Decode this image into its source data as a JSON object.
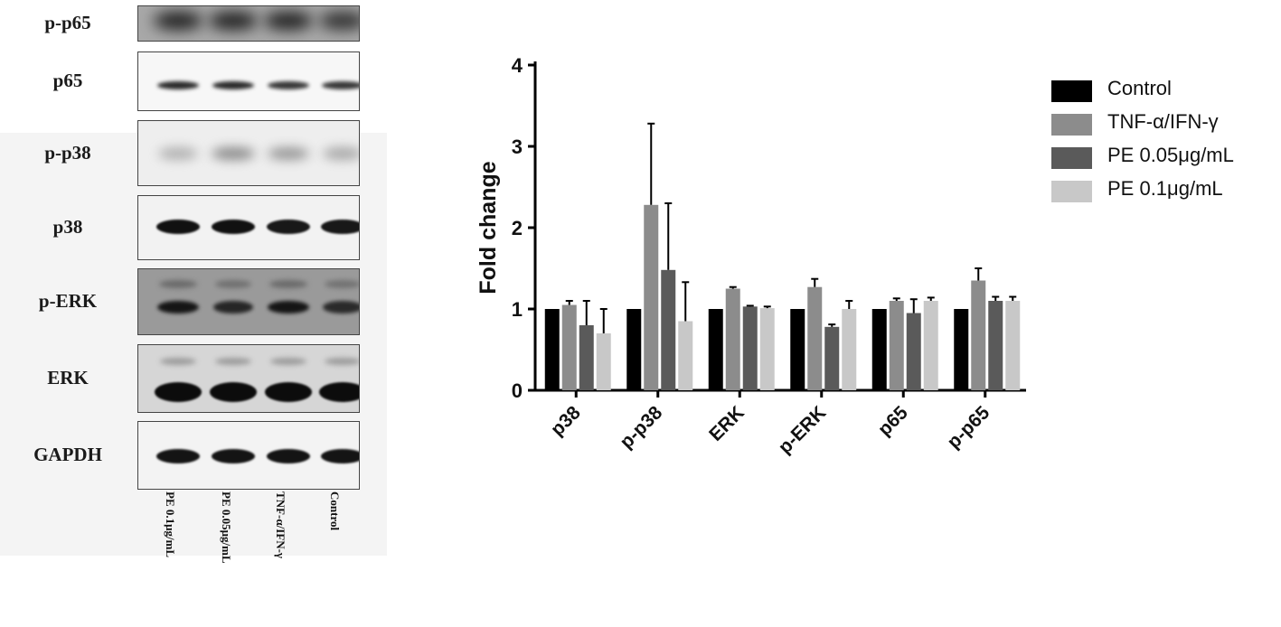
{
  "blot": {
    "rows": [
      {
        "label": "p-p65"
      },
      {
        "label": "p65"
      },
      {
        "label": "p-p38"
      },
      {
        "label": "p38"
      },
      {
        "label": "p-ERK"
      },
      {
        "label": "ERK"
      },
      {
        "label": "GAPDH"
      }
    ],
    "lanes": [
      {
        "label": "PE 0.1μg/mL"
      },
      {
        "label": "PE 0.05μg/mL"
      },
      {
        "label": "TNF-α/IFN-γ"
      },
      {
        "label": "Control"
      }
    ]
  },
  "chart_data": {
    "type": "bar",
    "categories": [
      "p38",
      "p-p38",
      "ERK",
      "p-ERK",
      "p65",
      "p-p65"
    ],
    "series": [
      {
        "name": "Control",
        "color": "#000000",
        "values": [
          1,
          1,
          1,
          1,
          1,
          1
        ],
        "errors": [
          0,
          0,
          0,
          0,
          0,
          0
        ]
      },
      {
        "name": "TNF-α/IFN-γ",
        "color": "#8c8c8c",
        "values": [
          1.05,
          2.28,
          1.25,
          1.27,
          1.1,
          1.35
        ],
        "errors": [
          0.05,
          1.0,
          0.02,
          0.1,
          0.03,
          0.15
        ]
      },
      {
        "name": "PE 0.05μg/mL",
        "color": "#5a5a5a",
        "values": [
          0.8,
          1.48,
          1.03,
          0.78,
          0.95,
          1.1
        ],
        "errors": [
          0.3,
          0.82,
          0.01,
          0.03,
          0.17,
          0.05
        ]
      },
      {
        "name": "PE 0.1μg/mL",
        "color": "#c8c8c8",
        "values": [
          0.7,
          0.85,
          1.01,
          1.0,
          1.1,
          1.1
        ],
        "errors": [
          0.3,
          0.48,
          0.02,
          0.1,
          0.04,
          0.05
        ]
      }
    ],
    "xlabel": "",
    "ylabel": "Fold change",
    "ylim": [
      0,
      4
    ],
    "yticks": [
      "0",
      "1",
      "2",
      "3",
      "4"
    ],
    "legend_position": "right",
    "grid": false
  }
}
